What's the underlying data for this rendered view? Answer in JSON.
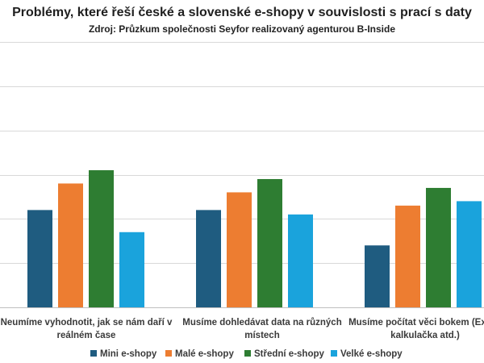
{
  "chart_data": {
    "type": "bar",
    "title": "Problémy, které řeší české a slovenské e-shopy v souvislosti s prací s daty",
    "subtitle": "Zdroj: Průzkum společnosti Seyfor realizovaný agenturou B-Inside",
    "categories": [
      [
        "Neumíme vyhodnotit, jak se nám daří v",
        "reálném čase"
      ],
      [
        "Musíme dohledávat data na různých",
        "místech"
      ],
      [
        "Musíme počítat věci bokem (Excel,",
        "kalkulačka atd.)"
      ]
    ],
    "series": [
      {
        "name": "Mini e-shopy",
        "color": "#1f5c80",
        "values": [
          22,
          22,
          14
        ]
      },
      {
        "name": "Malé e-shopy",
        "color": "#ed7d31",
        "values": [
          28,
          26,
          23
        ]
      },
      {
        "name": "Střední e-shopy",
        "color": "#2e7d32",
        "values": [
          31,
          29,
          27
        ]
      },
      {
        "name": "Velké e-shopy",
        "color": "#1aa3dc",
        "values": [
          17,
          21,
          24
        ]
      }
    ],
    "ylim": [
      0,
      60
    ],
    "grid": true,
    "legend": "bottom",
    "xlabel": "",
    "ylabel": ""
  }
}
